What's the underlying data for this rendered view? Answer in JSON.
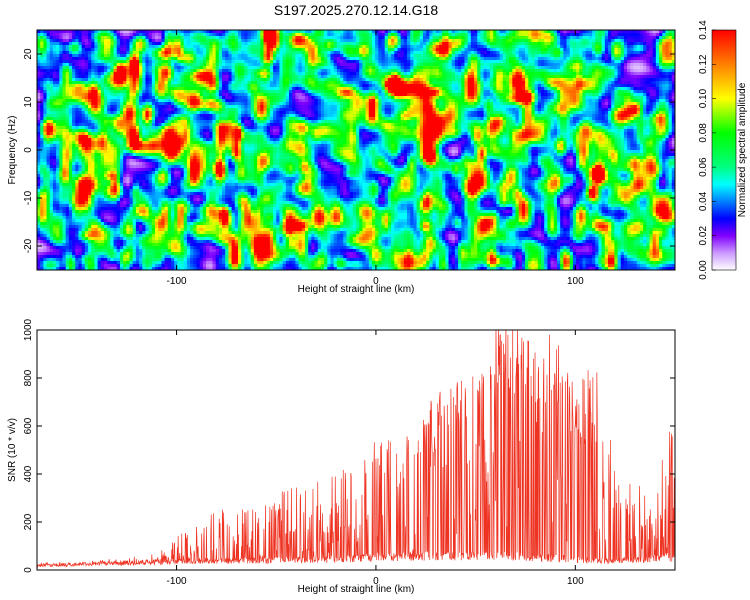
{
  "page": {
    "background": "#ffffff"
  },
  "chart_data": [
    {
      "type": "heatmap",
      "title": "S197.2025.270.12.14.G18",
      "xlabel": "Height of straight line (km)",
      "ylabel": "Frequency (Hz)",
      "xlim": [
        -170,
        150
      ],
      "ylim": [
        -25,
        25
      ],
      "xticks": [
        -100,
        0,
        100
      ],
      "yticks": [
        -20,
        -10,
        0,
        10,
        20
      ],
      "colorbar": {
        "label": "Normalized spectral amplitude",
        "min": 0.0,
        "max": 0.14,
        "ticks": [
          "0.00",
          "0.02",
          "0.04",
          "0.06",
          "0.08",
          "0.10",
          "0.12",
          "0.14"
        ],
        "stops": [
          {
            "value": 0.0,
            "color": "#ffffff"
          },
          {
            "value": 0.01,
            "color": "#cc99ff"
          },
          {
            "value": 0.02,
            "color": "#8000ff"
          },
          {
            "value": 0.03,
            "color": "#0000ff"
          },
          {
            "value": 0.04,
            "color": "#0080ff"
          },
          {
            "value": 0.05,
            "color": "#00ffff"
          },
          {
            "value": 0.06,
            "color": "#00ff80"
          },
          {
            "value": 0.08,
            "color": "#00ff00"
          },
          {
            "value": 0.1,
            "color": "#ffff00"
          },
          {
            "value": 0.12,
            "color": "#ff8000"
          },
          {
            "value": 0.14,
            "color": "#ff0000"
          }
        ]
      },
      "description_of_field": "Speckled noise field; background mostly 0.01-0.05 with blobs up to ~0.10 and isolated peaks near 0.14 at about (-69, 3), (-129, 16), (53, -1)",
      "hotspots": [
        {
          "x": -69,
          "y": 3.5,
          "value": 0.14
        },
        {
          "x": -70,
          "y": -0.5,
          "value": 0.12
        },
        {
          "x": -129,
          "y": 16,
          "value": 0.13
        },
        {
          "x": 53,
          "y": -1,
          "value": 0.13
        },
        {
          "x": -115,
          "y": 7,
          "value": 0.1
        },
        {
          "x": 18,
          "y": -3,
          "value": 0.1
        }
      ]
    },
    {
      "type": "line",
      "xlabel": "Height of straight line (km)",
      "ylabel": "SNR (10 * v/v)",
      "xlim": [
        -170,
        150
      ],
      "ylim": [
        0,
        1000
      ],
      "xticks": [
        -100,
        0,
        100
      ],
      "yticks": [
        0,
        200,
        400,
        600,
        800,
        1000
      ],
      "series": [
        {
          "name": "SNR",
          "color": "#ee3322",
          "baseline": [
            [
              -170,
              20
            ],
            [
              -100,
              40
            ],
            [
              -20,
              50
            ],
            [
              0,
              60
            ],
            [
              60,
              70
            ],
            [
              120,
              40
            ],
            [
              150,
              60
            ]
          ],
          "envelope": [
            [
              -170,
              30
            ],
            [
              -140,
              40
            ],
            [
              -110,
              80
            ],
            [
              -100,
              140
            ],
            [
              -80,
              250
            ],
            [
              -60,
              290
            ],
            [
              -40,
              350
            ],
            [
              -20,
              400
            ],
            [
              -10,
              450
            ],
            [
              0,
              540
            ],
            [
              10,
              580
            ],
            [
              20,
              600
            ],
            [
              30,
              700
            ],
            [
              40,
              800
            ],
            [
              50,
              830
            ],
            [
              55,
              900
            ],
            [
              60,
              1000
            ],
            [
              70,
              1000
            ],
            [
              80,
              870
            ],
            [
              90,
              1000
            ],
            [
              100,
              700
            ],
            [
              110,
              860
            ],
            [
              120,
              480
            ],
            [
              130,
              380
            ],
            [
              140,
              250
            ],
            [
              145,
              560
            ],
            [
              150,
              690
            ]
          ]
        }
      ]
    }
  ]
}
